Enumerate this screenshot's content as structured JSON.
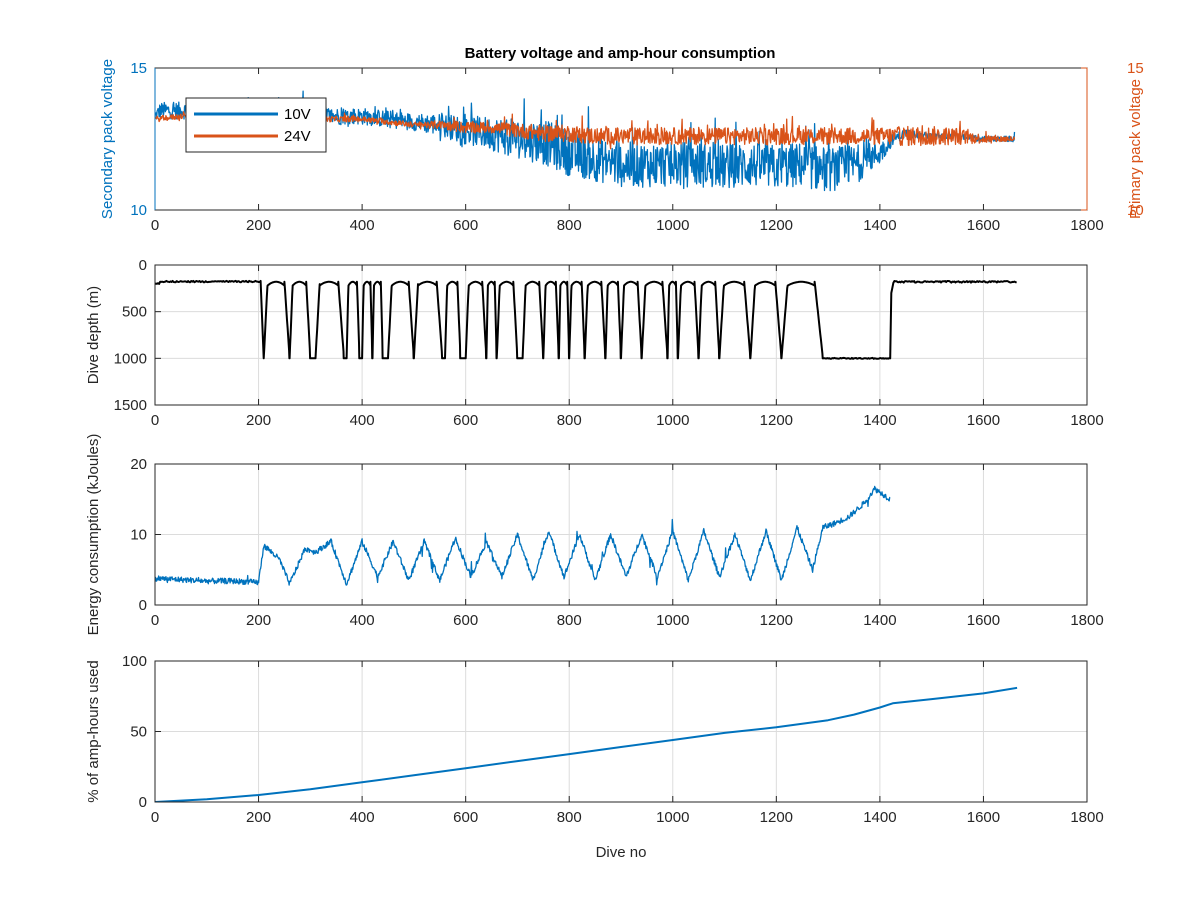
{
  "figure": {
    "title": "Battery voltage and amp-hour consumption",
    "colors": {
      "blue": "#0072bd",
      "orange": "#d95319",
      "black": "#000000"
    }
  },
  "chart_data": [
    {
      "type": "line",
      "title": "Battery voltage and amp-hour consumption",
      "xlabel": "",
      "ylabel": "Secondary pack voltage",
      "ylabel_right": "Primary pack voltage",
      "xlim": [
        0,
        1800
      ],
      "ylim": [
        10,
        15
      ],
      "ylim_right": [
        10,
        15
      ],
      "xticks": [
        "0",
        "200",
        "400",
        "600",
        "800",
        "1000",
        "1200",
        "1400",
        "1600",
        "1800"
      ],
      "yticks": [
        "10",
        "15"
      ],
      "yticks_right": [
        "10",
        "15"
      ],
      "grid": false,
      "legend": "top-left",
      "series": [
        {
          "name": "10V",
          "color": "#0072bd",
          "axis": "left",
          "x": [
            0,
            10,
            50,
            100,
            150,
            200,
            250,
            300,
            350,
            400,
            450,
            500,
            550,
            600,
            650,
            700,
            750,
            800,
            850,
            900,
            950,
            1000,
            1050,
            1100,
            1150,
            1200,
            1250,
            1300,
            1350,
            1400,
            1425,
            1450,
            1500,
            1550,
            1600,
            1660
          ],
          "y": [
            13.3,
            13.5,
            13.5,
            13.5,
            13.5,
            13.4,
            13.5,
            13.4,
            13.3,
            13.3,
            13.2,
            13.1,
            13.0,
            12.8,
            12.7,
            12.5,
            12.4,
            12.0,
            11.8,
            11.6,
            11.6,
            11.6,
            11.6,
            11.5,
            11.6,
            11.5,
            11.6,
            11.4,
            11.6,
            12.0,
            12.5,
            12.7,
            12.6,
            12.6,
            12.5,
            12.5
          ],
          "spread": [
            0.2,
            0.3,
            0.3,
            0.3,
            0.3,
            0.3,
            0.4,
            0.3,
            0.3,
            0.3,
            0.3,
            0.3,
            0.4,
            0.5,
            0.6,
            0.7,
            0.8,
            0.8,
            0.8,
            0.8,
            0.8,
            0.8,
            0.8,
            0.8,
            0.8,
            0.8,
            0.8,
            0.8,
            0.7,
            0.4,
            0.2,
            0.15,
            0.1,
            0.1,
            0.1,
            0.1
          ]
        },
        {
          "name": "24V",
          "color": "#d95319",
          "axis": "right",
          "x": [
            0,
            50,
            100,
            150,
            200,
            250,
            300,
            350,
            400,
            450,
            500,
            550,
            600,
            650,
            700,
            750,
            800,
            850,
            900,
            950,
            1000,
            1050,
            1100,
            1150,
            1200,
            1250,
            1300,
            1350,
            1400,
            1450,
            1500,
            1550,
            1600,
            1660
          ],
          "y": [
            13.2,
            13.3,
            13.3,
            13.3,
            13.3,
            13.2,
            13.2,
            13.2,
            13.2,
            13.1,
            13.0,
            13.0,
            12.9,
            12.9,
            12.8,
            12.7,
            12.7,
            12.6,
            12.6,
            12.6,
            12.6,
            12.6,
            12.6,
            12.6,
            12.6,
            12.6,
            12.6,
            12.6,
            12.6,
            12.6,
            12.6,
            12.6,
            12.5,
            12.5
          ],
          "spread": [
            0.1,
            0.1,
            0.1,
            0.1,
            0.1,
            0.1,
            0.1,
            0.1,
            0.1,
            0.1,
            0.1,
            0.15,
            0.2,
            0.2,
            0.25,
            0.3,
            0.3,
            0.3,
            0.3,
            0.3,
            0.3,
            0.3,
            0.3,
            0.3,
            0.3,
            0.3,
            0.3,
            0.3,
            0.3,
            0.35,
            0.35,
            0.3,
            0.15,
            0.1
          ]
        }
      ]
    },
    {
      "type": "line",
      "xlabel": "",
      "ylabel": "Dive depth (m)",
      "xlim": [
        0,
        1800
      ],
      "ylim": [
        0,
        1500
      ],
      "y_reversed": true,
      "xticks": [
        "0",
        "200",
        "400",
        "600",
        "800",
        "1000",
        "1200",
        "1400",
        "1600",
        "1800"
      ],
      "yticks": [
        "0",
        "500",
        "1000",
        "1500"
      ],
      "grid": true,
      "series": [
        {
          "color": "#000000",
          "pattern": {
            "surface_before": [
              0,
              205,
              180
            ],
            "cycles": [
              [
                210,
                260
              ],
              [
                260,
                300
              ],
              [
                310,
                365
              ],
              [
                370,
                395
              ],
              [
                400,
                420
              ],
              [
                420,
                440
              ],
              [
                450,
                500
              ],
              [
                500,
                555
              ],
              [
                560,
                590
              ],
              [
                600,
                640
              ],
              [
                640,
                660
              ],
              [
                660,
                700
              ],
              [
                710,
                750
              ],
              [
                750,
                780
              ],
              [
                780,
                800
              ],
              [
                800,
                830
              ],
              [
                830,
                870
              ],
              [
                870,
                900
              ],
              [
                900,
                940
              ],
              [
                940,
                990
              ],
              [
                990,
                1010
              ],
              [
                1010,
                1050
              ],
              [
                1050,
                1090
              ],
              [
                1090,
                1150
              ],
              [
                1150,
                1210
              ],
              [
                1210,
                1290
              ]
            ],
            "bottom_depth": 1000,
            "top_depth": 180,
            "flat_bottom": [
              1290,
              1420,
              1000
            ],
            "surface_after": [
              1420,
              1665,
              180
            ]
          }
        }
      ]
    },
    {
      "type": "line",
      "xlabel": "",
      "ylabel": "Energy consumption (kJoules)",
      "xlim": [
        0,
        1800
      ],
      "ylim": [
        0,
        20
      ],
      "xticks": [
        "0",
        "200",
        "400",
        "600",
        "800",
        "1000",
        "1200",
        "1400",
        "1600",
        "1800"
      ],
      "yticks": [
        "0",
        "10",
        "20"
      ],
      "grid": true,
      "series": [
        {
          "color": "#0072bd",
          "x": [
            0,
            50,
            100,
            150,
            200,
            210,
            240,
            260,
            290,
            310,
            340,
            370,
            400,
            430,
            460,
            490,
            520,
            550,
            580,
            610,
            640,
            670,
            700,
            730,
            760,
            790,
            820,
            850,
            880,
            910,
            940,
            970,
            1000,
            1030,
            1060,
            1090,
            1120,
            1150,
            1180,
            1210,
            1240,
            1270,
            1290,
            1310,
            1340,
            1370,
            1390,
            1400,
            1410,
            1420
          ],
          "y": [
            3.8,
            3.6,
            3.4,
            3.4,
            3.2,
            8.5,
            6.5,
            3.0,
            8.0,
            7.5,
            9.0,
            3.0,
            9.0,
            4.0,
            9.0,
            3.5,
            9.0,
            3.5,
            9.5,
            4.0,
            9.0,
            4.0,
            10.0,
            3.5,
            10.5,
            4.0,
            10.0,
            3.5,
            10.0,
            4.0,
            10.0,
            4.0,
            10.5,
            3.5,
            10.5,
            4.0,
            10.0,
            3.5,
            10.5,
            3.5,
            11.0,
            5.0,
            11.0,
            11.5,
            12.5,
            14.5,
            16.5,
            16.0,
            15.5,
            15.0
          ],
          "noise": 0.8
        }
      ]
    },
    {
      "type": "line",
      "xlabel": "Dive no",
      "ylabel": "% of amp-hours used",
      "xlim": [
        0,
        1800
      ],
      "ylim": [
        0,
        100
      ],
      "xticks": [
        "0",
        "200",
        "400",
        "600",
        "800",
        "1000",
        "1200",
        "1400",
        "1600",
        "1800"
      ],
      "yticks": [
        "0",
        "50",
        "100"
      ],
      "grid": true,
      "series": [
        {
          "color": "#0072bd",
          "x": [
            0,
            100,
            200,
            300,
            400,
            500,
            600,
            700,
            800,
            900,
            1000,
            1100,
            1200,
            1300,
            1350,
            1400,
            1425,
            1450,
            1500,
            1550,
            1600,
            1665
          ],
          "y": [
            0,
            2,
            5,
            9,
            14,
            19,
            24,
            29,
            34,
            39,
            44,
            49,
            53,
            58,
            62,
            67,
            70,
            71,
            73,
            75,
            77,
            81
          ]
        }
      ]
    }
  ]
}
